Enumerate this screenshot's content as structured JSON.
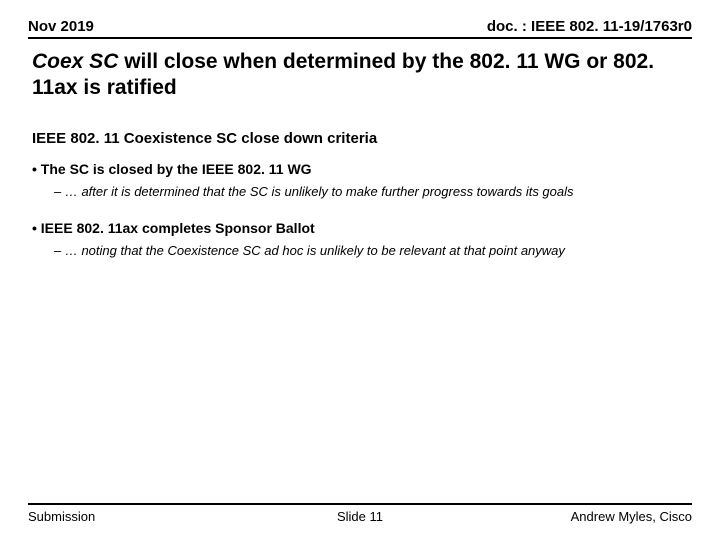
{
  "header": {
    "date": "Nov 2019",
    "docid": "doc. : IEEE 802. 11-19/1763r0"
  },
  "title": {
    "italic_part": "Coex SC",
    "rest": " will close when determined by the 802. 11 WG or 802. 11ax is ratified"
  },
  "subheading": "IEEE 802. 11 Coexistence SC close down criteria",
  "bullets": [
    {
      "l1": "• The SC is closed by the IEEE 802. 11 WG",
      "l2": "– … after it is determined that the SC is unlikely to make further progress towards its goals"
    },
    {
      "l1": "• IEEE 802. 11ax completes Sponsor Ballot",
      "l2": "– … noting that the Coexistence SC ad hoc is unlikely to be relevant at that point anyway"
    }
  ],
  "footer": {
    "left": "Submission",
    "center": "Slide 11",
    "right": "Andrew Myles, Cisco"
  }
}
